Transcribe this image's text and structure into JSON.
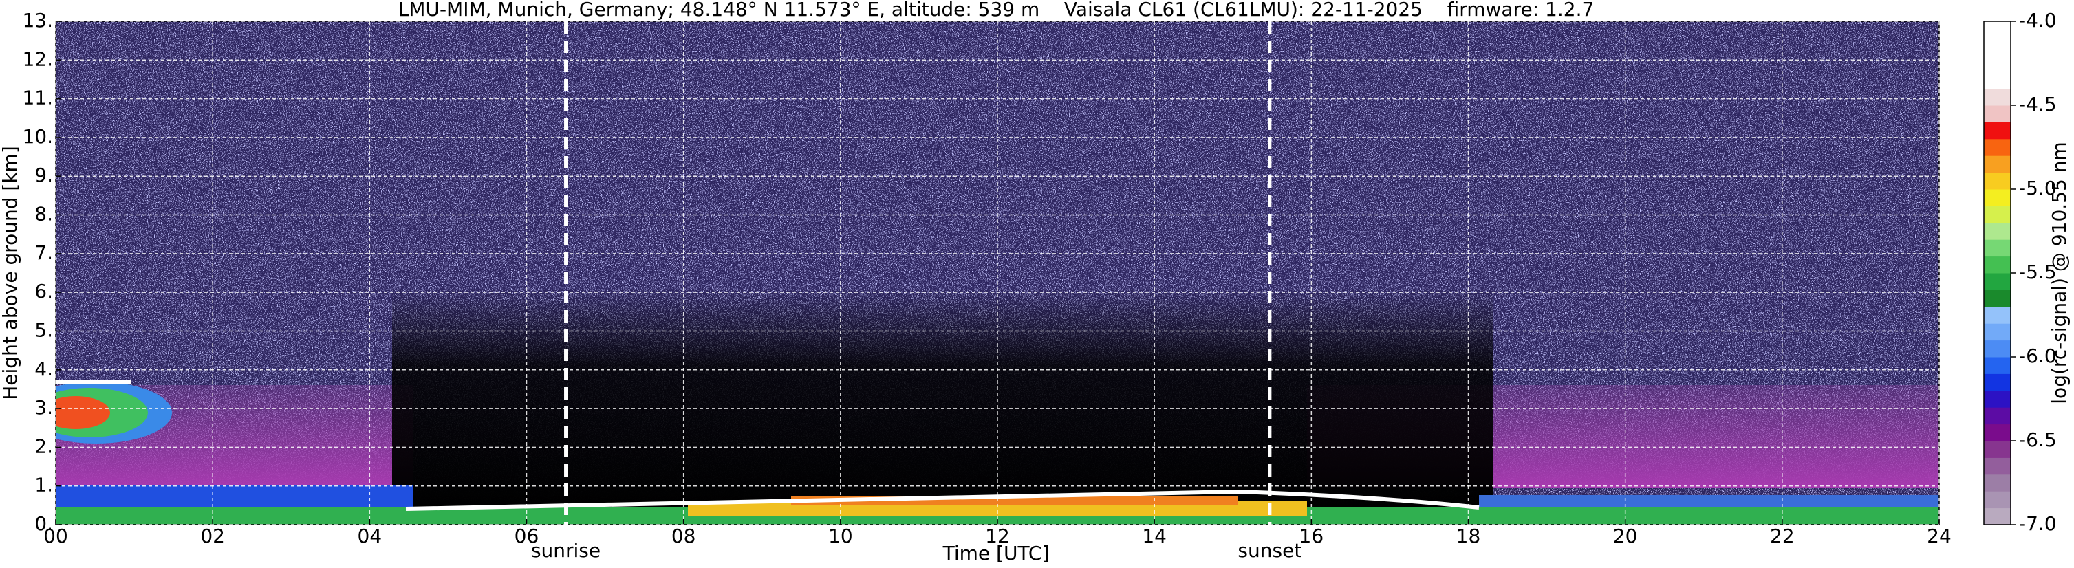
{
  "chart_data": {
    "type": "heatmap",
    "title": "LMU-MIM, Munich, Germany; 48.148° N 11.573° E, altitude: 539 m    Vaisala CL61 (CL61LMU): 22-11-2025    firmware: 1.2.7",
    "x_label": "Time [UTC]",
    "y_label": "Height above ground [km]",
    "xlim": [
      0,
      24
    ],
    "xticks": [
      {
        "value": 0,
        "label": "00"
      },
      {
        "value": 2,
        "label": "02"
      },
      {
        "value": 4,
        "label": "04"
      },
      {
        "value": 6,
        "label": "06"
      },
      {
        "value": 8,
        "label": "08"
      },
      10,
      12,
      14,
      16,
      18,
      20,
      22,
      24
    ],
    "ylim": [
      0,
      13
    ],
    "yticks": [
      {
        "value": 0,
        "label": "0."
      },
      {
        "value": 1,
        "label": "1."
      },
      {
        "value": 2,
        "label": "2."
      },
      {
        "value": 3,
        "label": "3."
      },
      {
        "value": 4,
        "label": "4."
      },
      {
        "value": 5,
        "label": "5."
      },
      {
        "value": 6,
        "label": "6."
      },
      {
        "value": 7,
        "label": "7."
      },
      {
        "value": 8,
        "label": "8."
      },
      {
        "value": 9,
        "label": "9."
      },
      {
        "value": 10,
        "label": "10."
      },
      {
        "value": 11,
        "label": "11."
      },
      {
        "value": 12,
        "label": "12."
      },
      {
        "value": 13,
        "label": "13."
      }
    ],
    "grid": true,
    "annotations": [
      {
        "label": "sunrise",
        "x": 6.5
      },
      {
        "label": "sunset",
        "x": 15.47
      }
    ],
    "colorbar": {
      "label": "log(rc-signal) @ 910.55 nm",
      "lim": [
        -7.0,
        -4.0
      ],
      "ticks": [
        {
          "value": -4.0,
          "label": "-4.0"
        },
        -4.5,
        {
          "value": -5.0,
          "label": "-5.0"
        },
        -5.5,
        {
          "value": -6.0,
          "label": "-6.0"
        },
        -6.5,
        {
          "value": -7.0,
          "label": "-7.0"
        }
      ],
      "colors": [
        "#b9aabf",
        "#a994b3",
        "#9c7ea6",
        "#935e9c",
        "#87358f",
        "#7a0c8c",
        "#5c0ca4",
        "#2c12c4",
        "#1234e2",
        "#2464f0",
        "#4c8cf4",
        "#72aaf8",
        "#94c2fa",
        "#1a8a2c",
        "#22a640",
        "#44c052",
        "#76d874",
        "#aee88e",
        "#d6f04c",
        "#f4ee20",
        "#f8cc20",
        "#f8a020",
        "#f86410",
        "#f01010",
        "#f0c4c4",
        "#f0dcdc",
        "#ffffff",
        "#ffffff",
        "#ffffff",
        "#ffffff"
      ]
    }
  }
}
